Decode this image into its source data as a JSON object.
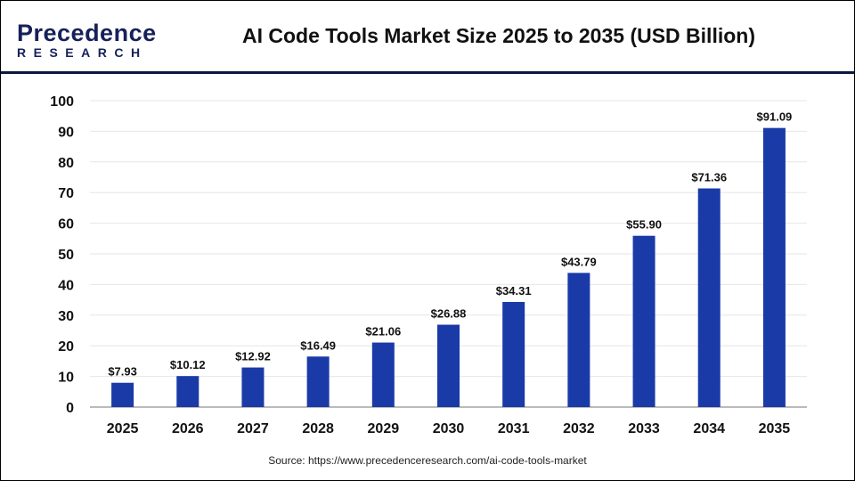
{
  "brand": {
    "line1": "Precedence",
    "line2": "RESEARCH"
  },
  "chart_data": {
    "type": "bar",
    "title": "AI Code Tools Market Size 2025 to 2035 (USD Billion)",
    "categories": [
      "2025",
      "2026",
      "2027",
      "2028",
      "2029",
      "2030",
      "2031",
      "2032",
      "2033",
      "2034",
      "2035"
    ],
    "values": [
      7.93,
      10.12,
      12.92,
      16.49,
      21.06,
      26.88,
      34.31,
      43.79,
      55.9,
      71.36,
      91.09
    ],
    "data_labels": [
      "$7.93",
      "$10.12",
      "$12.92",
      "$16.49",
      "$21.06",
      "$26.88",
      "$34.31",
      "$43.79",
      "$55.90",
      "$71.36",
      "$91.09"
    ],
    "ylim": [
      0,
      100
    ],
    "yticks": [
      0,
      10,
      20,
      30,
      40,
      50,
      60,
      70,
      80,
      90,
      100
    ],
    "grid": true,
    "bar_color": "#1a3aa8"
  },
  "source": "Source: https://www.precedenceresearch.com/ai-code-tools-market"
}
